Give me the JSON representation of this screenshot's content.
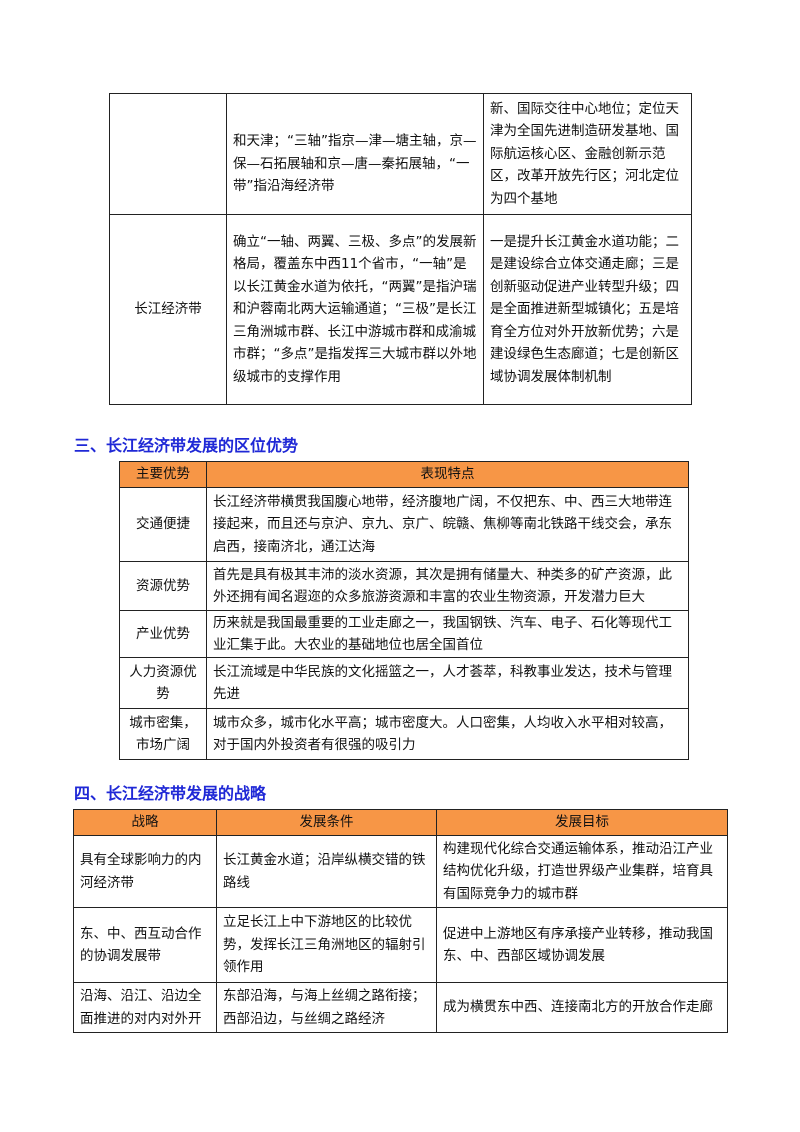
{
  "table1": {
    "rows": [
      {
        "col1": "",
        "col2": "和天津；“三轴”指京—津—塘主轴，京—保—石拓展轴和京—唐—秦拓展轴，“一带”指沿海经济带",
        "col3": "新、国际交往中心地位；定位天津为全国先进制造研发基地、国际航运核心区、金融创新示范区，改革开放先行区；河北定位为四个基地"
      },
      {
        "col1": "长江经济带",
        "col2": "确立“一轴、两翼、三极、多点”的发展新格局，覆盖东中西11个省市，“一轴”是以长江黄金水道为依托，“两翼”是指沪瑞和沪蓉南北两大运输通道；“三极”是长江三角洲城市群、长江中游城市群和成渝城市群；“多点”是指发挥三大城市群以外地级城市的支撑作用",
        "col3": "一是提升长江黄金水道功能；二是建设综合立体交通走廊；三是创新驱动促进产业转型升级；四是全面推进新型城镇化；五是培育全方位对外开放新优势；六是建设绿色生态廊道；七是创新区域协调发展体制机制"
      }
    ]
  },
  "section3": {
    "title": "三、长江经济带发展的区位优势",
    "headers": [
      "主要优势",
      "表现特点"
    ],
    "rows": [
      {
        "name": "交通便捷",
        "desc": "长江经济带横贯我国腹心地带，经济腹地广阔，不仅把东、中、西三大地带连接起来，而且还与京沪、京九、京广、皖赣、焦柳等南北铁路干线交会，承东启西，接南济北，通江达海"
      },
      {
        "name": "资源优势",
        "desc": "首先是具有极其丰沛的淡水资源，其次是拥有储量大、种类多的矿产资源，此外还拥有闻名遐迩的众多旅游资源和丰富的农业生物资源，开发潜力巨大"
      },
      {
        "name": "产业优势",
        "desc": "历来就是我国最重要的工业走廊之一，我国钢铁、汽车、电子、石化等现代工业汇集于此。大农业的基础地位也居全国首位"
      },
      {
        "name": "人力资源优势",
        "desc": "长江流域是中华民族的文化摇篮之一，人才荟萃，科教事业发达，技术与管理先进"
      },
      {
        "name": "城市密集，市场广阔",
        "desc": "城市众多，城市化水平高；城市密度大。人口密集，人均收入水平相对较高，对于国内外投资者有很强的吸引力"
      }
    ]
  },
  "section4": {
    "title": "四、长江经济带发展的战略",
    "headers": [
      "战略",
      "发展条件",
      "发展目标"
    ],
    "rows": [
      {
        "strategy": "具有全球影响力的内河经济带",
        "condition": "长江黄金水道；沿岸纵横交错的铁路线",
        "goal": "构建现代化综合交通运输体系，推动沿江产业结构优化升级，打造世界级产业集群，培育具有国际竞争力的城市群"
      },
      {
        "strategy": "东、中、西互动合作的协调发展带",
        "condition": "立足长江上中下游地区的比较优势，发挥长江三角洲地区的辐射引领作用",
        "goal": "促进中上游地区有序承接产业转移，推动我国东、中、西部区域协调发展"
      },
      {
        "strategy": "沿海、沿江、沿边全面推进的对内对外开",
        "condition": "东部沿海，与海上丝绸之路衔接；西部沿边，与丝绸之路经济",
        "goal": "成为横贯东中西、连接南北方的开放合作走廊"
      }
    ]
  }
}
